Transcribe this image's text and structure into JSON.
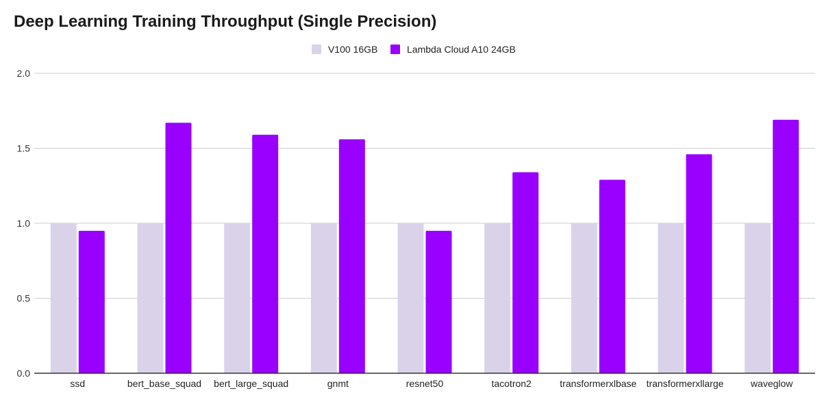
{
  "chart_data": {
    "type": "bar",
    "title": "Deep Learning Training Throughput (Single Precision)",
    "xlabel": "",
    "ylabel": "",
    "ylim": [
      0,
      2.0
    ],
    "yticks": [
      "0.0",
      "0.5",
      "1.0",
      "1.5",
      "2.0"
    ],
    "grid": true,
    "legend_position": "top-center",
    "categories": [
      "ssd",
      "bert_base_squad",
      "bert_large_squad",
      "gnmt",
      "resnet50",
      "tacotron2",
      "transformerxlbase",
      "transformerxllarge",
      "waveglow"
    ],
    "series": [
      {
        "name": "V100 16GB",
        "color": "#d9d2e9",
        "values": [
          1.0,
          1.0,
          1.0,
          1.0,
          1.0,
          1.0,
          1.0,
          1.0,
          1.0
        ]
      },
      {
        "name": "Lambda Cloud A10 24GB",
        "color": "#9900ff",
        "values": [
          0.95,
          1.67,
          1.59,
          1.56,
          0.95,
          1.34,
          1.29,
          1.46,
          1.69
        ]
      }
    ]
  }
}
